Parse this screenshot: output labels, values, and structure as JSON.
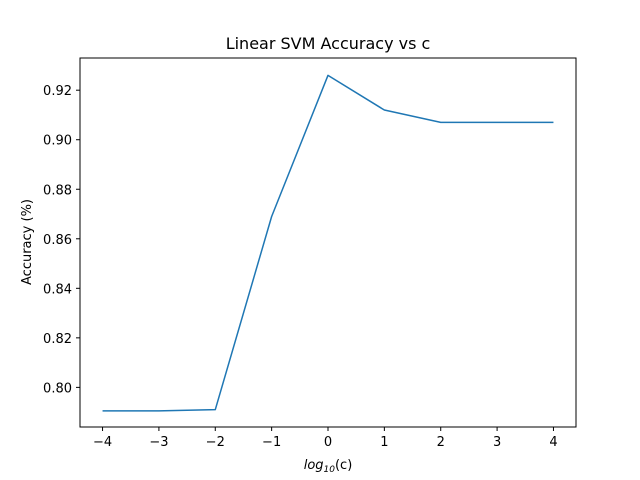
{
  "chart_data": {
    "type": "line",
    "title": "Linear SVM Accuracy vs c",
    "xlabel_base": "log",
    "xlabel_sub": "10",
    "xlabel_tail": "(c)",
    "ylabel": "Accuracy (%)",
    "x": [
      -4,
      -3,
      -2,
      -1,
      0,
      1,
      2,
      3,
      4
    ],
    "series": [
      {
        "values": [
          0.7905,
          0.7905,
          0.791,
          0.869,
          0.926,
          0.912,
          0.907,
          0.907,
          0.907
        ],
        "color": "#1f77b4"
      }
    ],
    "xlim": [
      -4.4,
      4.4
    ],
    "ylim": [
      0.784,
      0.933
    ],
    "xticks": [
      -4,
      -3,
      -2,
      -1,
      0,
      1,
      2,
      3,
      4
    ],
    "xtick_labels": [
      "−4",
      "−3",
      "−2",
      "−1",
      "0",
      "1",
      "2",
      "3",
      "4"
    ],
    "yticks": [
      0.8,
      0.82,
      0.84,
      0.86,
      0.88,
      0.9,
      0.92
    ],
    "ytick_labels": [
      "0.80",
      "0.82",
      "0.84",
      "0.86",
      "0.88",
      "0.90",
      "0.92"
    ],
    "grid": false,
    "legend": false
  }
}
